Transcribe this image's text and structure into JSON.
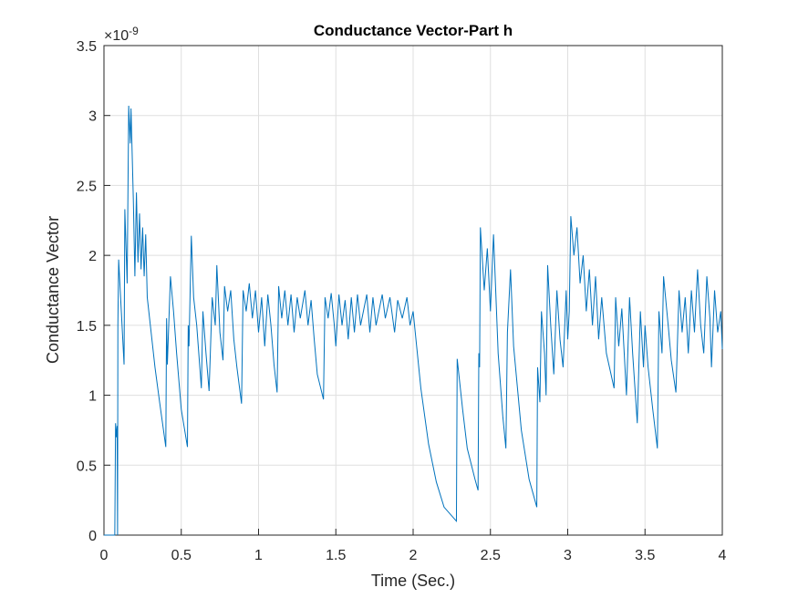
{
  "chart_data": {
    "type": "line",
    "title": "Conductance Vector-Part h",
    "xlabel": "Time (Sec.)",
    "ylabel": "Conductance Vector",
    "y_exponent_base": "×10",
    "y_exponent": "-9",
    "color": "#0072bd",
    "grid": true,
    "xlim": [
      0,
      4
    ],
    "xticks": [
      0,
      0.5,
      1,
      1.5,
      2,
      2.5,
      3,
      3.5,
      4
    ],
    "ylim": [
      0,
      3.5
    ],
    "yticks": [
      0,
      0.5,
      1,
      1.5,
      2,
      2.5,
      3,
      3.5
    ],
    "x": [
      0,
      0.07,
      0.075,
      0.08,
      0.085,
      0.088,
      0.09,
      0.095,
      0.13,
      0.135,
      0.15,
      0.16,
      0.17,
      0.175,
      0.19,
      0.2,
      0.21,
      0.22,
      0.23,
      0.24,
      0.25,
      0.26,
      0.27,
      0.28,
      0.3,
      0.33,
      0.36,
      0.4,
      0.405,
      0.41,
      0.43,
      0.45,
      0.47,
      0.5,
      0.54,
      0.545,
      0.55,
      0.565,
      0.58,
      0.6,
      0.63,
      0.64,
      0.66,
      0.68,
      0.7,
      0.72,
      0.73,
      0.75,
      0.77,
      0.78,
      0.8,
      0.82,
      0.84,
      0.86,
      0.89,
      0.9,
      0.92,
      0.94,
      0.96,
      0.98,
      1.0,
      1.02,
      1.04,
      1.06,
      1.08,
      1.1,
      1.12,
      1.13,
      1.15,
      1.17,
      1.19,
      1.21,
      1.23,
      1.25,
      1.27,
      1.3,
      1.32,
      1.34,
      1.36,
      1.38,
      1.42,
      1.43,
      1.45,
      1.47,
      1.49,
      1.5,
      1.52,
      1.54,
      1.56,
      1.58,
      1.6,
      1.62,
      1.64,
      1.66,
      1.7,
      1.72,
      1.74,
      1.76,
      1.8,
      1.82,
      1.85,
      1.88,
      1.9,
      1.93,
      1.96,
      1.98,
      2.0,
      2.05,
      2.1,
      2.15,
      2.2,
      2.28,
      2.285,
      2.32,
      2.35,
      2.4,
      2.42,
      2.425,
      2.43,
      2.435,
      2.46,
      2.48,
      2.5,
      2.52,
      2.55,
      2.58,
      2.6,
      2.61,
      2.63,
      2.65,
      2.7,
      2.75,
      2.8,
      2.805,
      2.82,
      2.83,
      2.85,
      2.86,
      2.87,
      2.89,
      2.91,
      2.93,
      2.95,
      2.97,
      2.99,
      3.0,
      3.01,
      3.02,
      3.04,
      3.06,
      3.08,
      3.1,
      3.12,
      3.14,
      3.16,
      3.18,
      3.2,
      3.22,
      3.25,
      3.3,
      3.31,
      3.33,
      3.35,
      3.38,
      3.4,
      3.42,
      3.45,
      3.47,
      3.49,
      3.5,
      3.52,
      3.55,
      3.58,
      3.59,
      3.61,
      3.62,
      3.65,
      3.67,
      3.7,
      3.72,
      3.74,
      3.76,
      3.78,
      3.8,
      3.82,
      3.84,
      3.86,
      3.88,
      3.9,
      3.92,
      3.93,
      3.95,
      3.97,
      3.99,
      4.0
    ],
    "values": [
      0,
      0,
      0.8,
      0.7,
      0.78,
      0,
      1.5,
      1.97,
      1.22,
      2.33,
      1.8,
      3.07,
      2.8,
      3.05,
      2.4,
      1.85,
      2.45,
      1.95,
      2.3,
      1.9,
      2.2,
      1.85,
      2.15,
      1.7,
      1.5,
      1.2,
      0.95,
      0.63,
      1.55,
      1.22,
      1.85,
      1.6,
      1.3,
      0.9,
      0.63,
      1.5,
      1.35,
      2.14,
      1.7,
      1.5,
      1.05,
      1.6,
      1.3,
      1.03,
      1.7,
      1.5,
      1.93,
      1.45,
      1.25,
      1.78,
      1.6,
      1.75,
      1.4,
      1.2,
      0.94,
      1.75,
      1.6,
      1.8,
      1.55,
      1.75,
      1.45,
      1.7,
      1.35,
      1.72,
      1.5,
      1.22,
      1.02,
      1.78,
      1.55,
      1.75,
      1.5,
      1.72,
      1.45,
      1.7,
      1.55,
      1.75,
      1.5,
      1.68,
      1.4,
      1.15,
      0.97,
      1.7,
      1.55,
      1.73,
      1.5,
      1.35,
      1.72,
      1.5,
      1.68,
      1.4,
      1.7,
      1.45,
      1.72,
      1.5,
      1.72,
      1.45,
      1.7,
      1.5,
      1.72,
      1.55,
      1.7,
      1.45,
      1.68,
      1.55,
      1.7,
      1.5,
      1.6,
      1.05,
      0.65,
      0.38,
      0.2,
      0.1,
      1.26,
      0.9,
      0.62,
      0.4,
      0.32,
      1.3,
      1.2,
      2.2,
      1.75,
      2.05,
      1.6,
      2.15,
      1.3,
      0.85,
      0.62,
      1.45,
      1.9,
      1.35,
      0.75,
      0.4,
      0.2,
      1.2,
      0.95,
      1.6,
      1.3,
      1.0,
      1.93,
      1.5,
      1.15,
      1.75,
      1.4,
      1.2,
      1.75,
      1.4,
      1.6,
      2.28,
      2.0,
      2.2,
      1.8,
      2.0,
      1.6,
      1.9,
      1.5,
      1.85,
      1.4,
      1.7,
      1.3,
      1.05,
      1.7,
      1.35,
      1.62,
      1.0,
      1.7,
      1.3,
      0.8,
      1.6,
      1.2,
      1.5,
      1.2,
      0.9,
      0.62,
      1.6,
      1.3,
      1.85,
      1.5,
      1.25,
      1.02,
      1.75,
      1.45,
      1.7,
      1.3,
      1.75,
      1.45,
      1.9,
      1.5,
      1.3,
      1.85,
      1.55,
      1.2,
      1.75,
      1.45,
      1.6,
      1.33
    ]
  }
}
